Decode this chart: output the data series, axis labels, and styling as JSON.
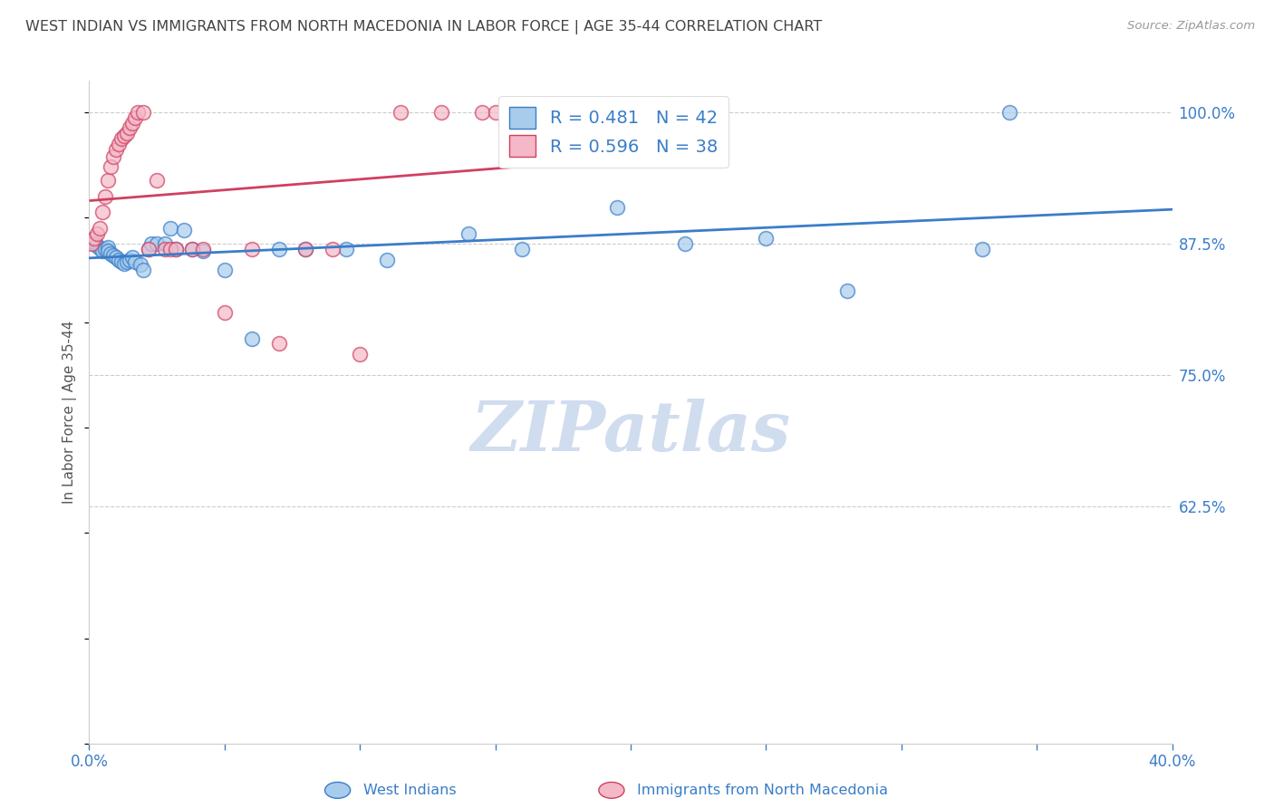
{
  "title": "WEST INDIAN VS IMMIGRANTS FROM NORTH MACEDONIA IN LABOR FORCE | AGE 35-44 CORRELATION CHART",
  "source": "Source: ZipAtlas.com",
  "ylabel": "In Labor Force | Age 35-44",
  "r_blue": 0.481,
  "n_blue": 42,
  "r_pink": 0.596,
  "n_pink": 38,
  "xlim": [
    0.0,
    0.4
  ],
  "ylim": [
    0.4,
    1.03
  ],
  "yticks": [
    0.625,
    0.75,
    0.875,
    1.0
  ],
  "ytick_labels": [
    "62.5%",
    "75.0%",
    "87.5%",
    "100.0%"
  ],
  "xticks": [
    0.0,
    0.05,
    0.1,
    0.15,
    0.2,
    0.25,
    0.3,
    0.35,
    0.4
  ],
  "xtick_labels": [
    "0.0%",
    "",
    "",
    "",
    "",
    "",
    "",
    "",
    "40.0%"
  ],
  "color_blue": "#A8CCEC",
  "color_pink": "#F4B8C8",
  "line_blue": "#3A7DC9",
  "line_pink": "#D04060",
  "legend_text_color": "#3A7DC9",
  "title_color": "#444444",
  "axis_color": "#3A7DC9",
  "watermark": "ZIPatlas",
  "watermark_color": "#D0DDEF",
  "blue_x": [
    0.002,
    0.003,
    0.004,
    0.005,
    0.006,
    0.007,
    0.007,
    0.008,
    0.009,
    0.01,
    0.011,
    0.012,
    0.013,
    0.014,
    0.015,
    0.016,
    0.017,
    0.019,
    0.02,
    0.022,
    0.023,
    0.025,
    0.028,
    0.03,
    0.032,
    0.035,
    0.038,
    0.042,
    0.05,
    0.06,
    0.07,
    0.08,
    0.095,
    0.11,
    0.14,
    0.16,
    0.195,
    0.22,
    0.25,
    0.28,
    0.33,
    0.34
  ],
  "blue_y": [
    0.875,
    0.873,
    0.871,
    0.868,
    0.87,
    0.872,
    0.868,
    0.866,
    0.864,
    0.862,
    0.86,
    0.858,
    0.856,
    0.858,
    0.86,
    0.862,
    0.858,
    0.855,
    0.85,
    0.87,
    0.875,
    0.875,
    0.875,
    0.89,
    0.87,
    0.888,
    0.87,
    0.868,
    0.85,
    0.785,
    0.87,
    0.87,
    0.87,
    0.86,
    0.885,
    0.87,
    0.91,
    0.875,
    0.88,
    0.83,
    0.87,
    1.0
  ],
  "pink_x": [
    0.001,
    0.002,
    0.003,
    0.004,
    0.005,
    0.006,
    0.007,
    0.008,
    0.009,
    0.01,
    0.011,
    0.012,
    0.013,
    0.014,
    0.015,
    0.016,
    0.017,
    0.018,
    0.02,
    0.022,
    0.025,
    0.028,
    0.03,
    0.032,
    0.038,
    0.042,
    0.05,
    0.06,
    0.07,
    0.08,
    0.09,
    0.1,
    0.115,
    0.13,
    0.145,
    0.15,
    0.155,
    0.17
  ],
  "pink_y": [
    0.875,
    0.88,
    0.885,
    0.89,
    0.905,
    0.92,
    0.935,
    0.948,
    0.958,
    0.965,
    0.97,
    0.975,
    0.978,
    0.98,
    0.985,
    0.99,
    0.995,
    1.0,
    1.0,
    0.87,
    0.935,
    0.87,
    0.87,
    0.87,
    0.87,
    0.87,
    0.81,
    0.87,
    0.78,
    0.87,
    0.87,
    0.77,
    1.0,
    1.0,
    1.0,
    1.0,
    1.0,
    1.0
  ]
}
